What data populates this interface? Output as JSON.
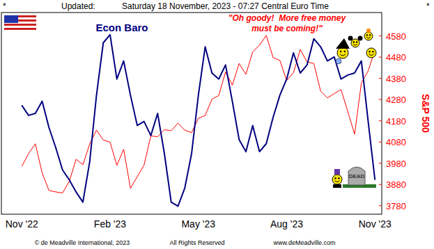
{
  "header": {
    "left_mark": "*",
    "updated_label": "Updated:",
    "timestamp": "Saturday 18 November, 2023 - 07:27 Central Euro Time",
    "right_mark": "*"
  },
  "chart_data": {
    "type": "line",
    "categories": [
      "Nov '22",
      null,
      null,
      null,
      null,
      null,
      null,
      null,
      null,
      null,
      null,
      null,
      null,
      "Feb '23",
      null,
      null,
      null,
      null,
      null,
      null,
      null,
      null,
      null,
      null,
      null,
      null,
      "May '23",
      null,
      null,
      null,
      null,
      null,
      null,
      null,
      null,
      null,
      null,
      null,
      null,
      "Aug '23",
      null,
      null,
      null,
      null,
      null,
      null,
      null,
      null,
      null,
      null,
      null,
      null,
      "Nov '23"
    ],
    "series": [
      {
        "name": "Econ Baro",
        "color": "#000080",
        "values": [
          54,
          49,
          50,
          56,
          43,
          33,
          22,
          17,
          11,
          6,
          26,
          59,
          85,
          89,
          67,
          76,
          59,
          44,
          46,
          39,
          50,
          30,
          6,
          4,
          13,
          30,
          59,
          83,
          70,
          67,
          74,
          56,
          37,
          31,
          44,
          31,
          35,
          48,
          59,
          67,
          80,
          70,
          74,
          87,
          83,
          76,
          78,
          67,
          69,
          70,
          76,
          46,
          17
        ]
      },
      {
        "name": "S&P 500",
        "color": "#ff0000",
        "axis": "y2",
        "values": [
          3965,
          4026,
          4072,
          3934,
          3852,
          3845,
          3840,
          3895,
          3999,
          3973,
          4071,
          4136,
          4090,
          4079,
          3970,
          4046,
          3862,
          3917,
          3971,
          4109,
          4105,
          4138,
          4133,
          4169,
          4136,
          4124,
          4192,
          4205,
          4282,
          4299,
          4410,
          4348,
          4450,
          4399,
          4505,
          4536,
          4582,
          4478,
          4464,
          4370,
          4406,
          4516,
          4457,
          4450,
          4320,
          4288,
          4308,
          4327,
          4224,
          4117,
          4358,
          4415,
          4514
        ]
      }
    ],
    "ylim": [
      0,
      100
    ],
    "y2lim": [
      3740,
      4690
    ],
    "y2ticks": [
      3780,
      3880,
      3980,
      4080,
      4180,
      4280,
      4380,
      4480,
      4580
    ],
    "grid": false,
    "annotations": {
      "quote": [
        "\"Oh goody!  More free money",
        "must be coming!\""
      ],
      "tombstone": "DEAD"
    }
  },
  "footer": {
    "copyright": "© de Meadville International, 2023",
    "rights": "All Rights Reserved",
    "website": "www.deMeadville.com"
  }
}
